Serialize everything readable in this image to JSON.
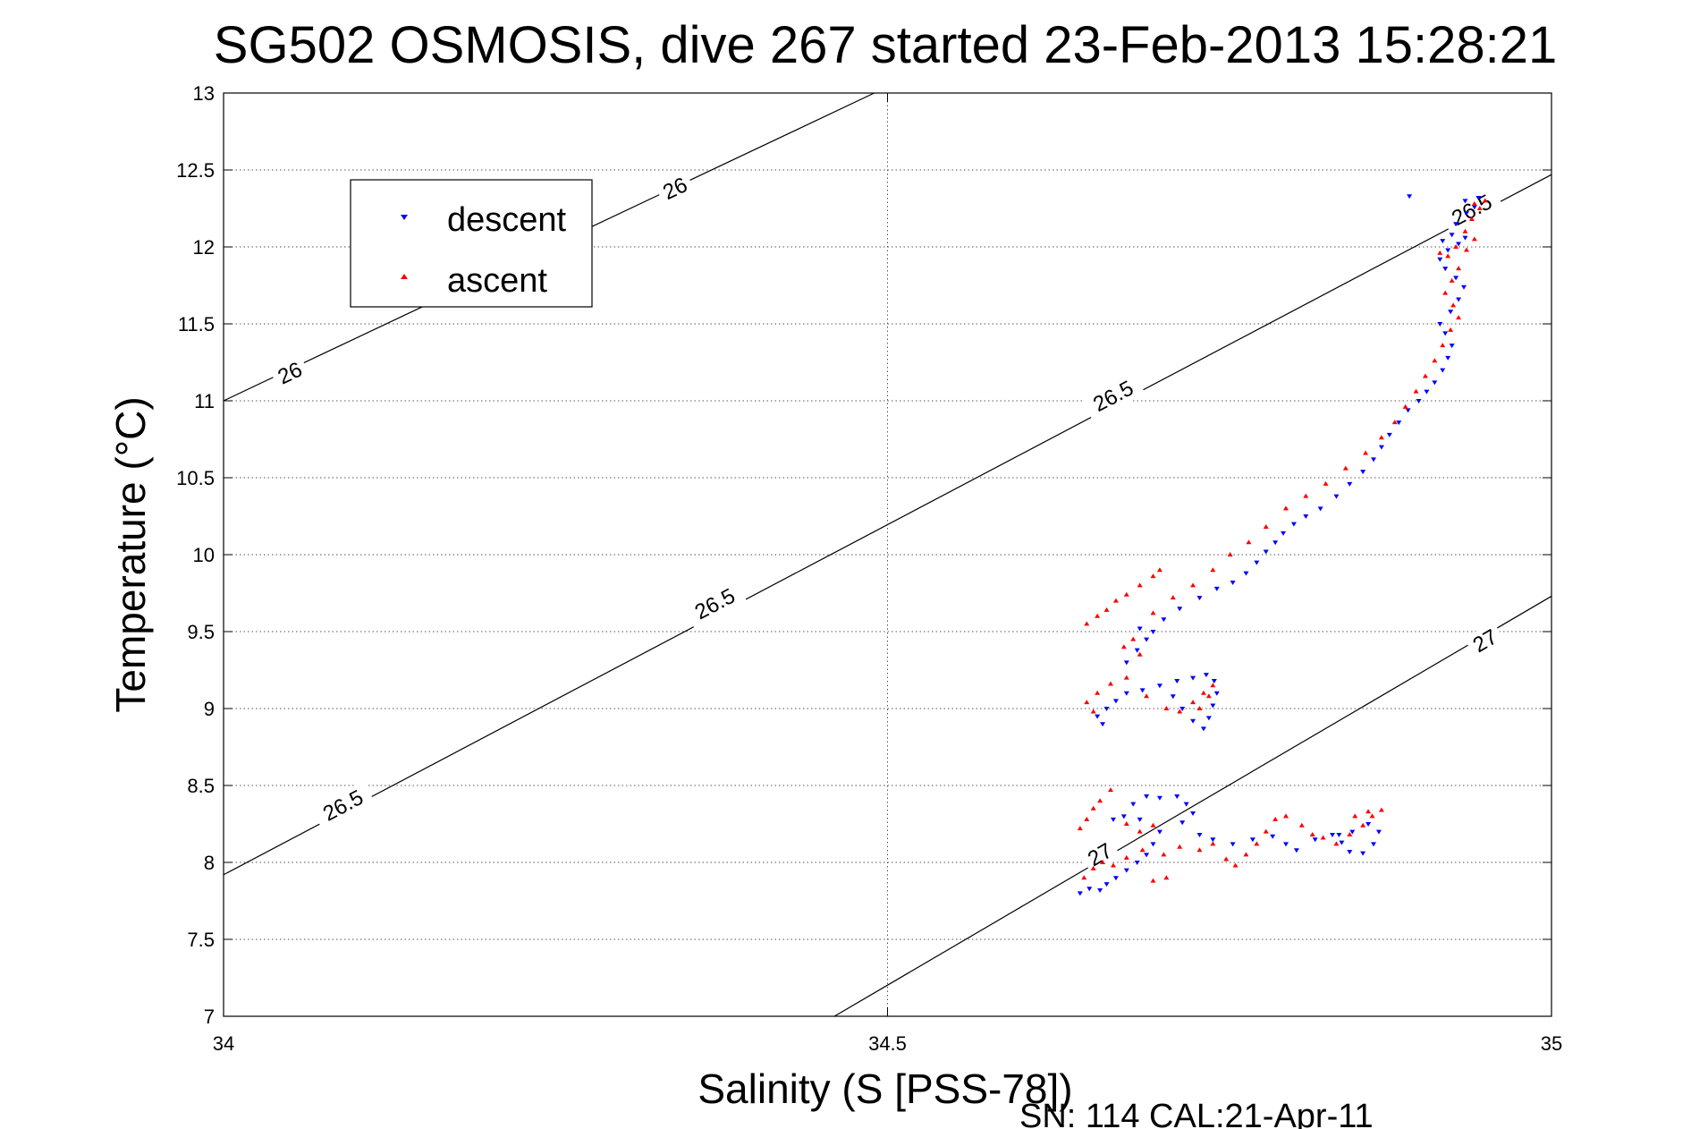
{
  "chart_data": {
    "type": "scatter",
    "title": "SG502 OSMOSIS, dive 267 started 23-Feb-2013 15:28:21",
    "xlabel": "Salinity (S [PSS-78])",
    "ylabel": "Temperature (°C)",
    "footer": "SN: 114  CAL:21-Apr-11",
    "xlim": [
      34,
      35
    ],
    "ylim": [
      7,
      13
    ],
    "x_ticks": [
      "34",
      "34.5",
      "35"
    ],
    "y_ticks": [
      "7",
      "7.5",
      "8",
      "8.5",
      "9",
      "9.5",
      "10",
      "10.5",
      "11",
      "11.5",
      "12",
      "12.5",
      "13"
    ],
    "grid": true,
    "legend": {
      "position": "top-left",
      "entries": [
        "descent",
        "ascent"
      ]
    },
    "colors": {
      "descent": "#0000ff",
      "ascent": "#ff0000",
      "contour": "#000000"
    },
    "contours": [
      {
        "label": "26",
        "points": [
          [
            34.0,
            11.0
          ],
          [
            34.49,
            13.0
          ]
        ],
        "label_positions": [
          [
            34.05,
            11.18
          ],
          [
            34.34,
            12.38
          ]
        ]
      },
      {
        "label": "26.5",
        "points": [
          [
            34.0,
            7.92
          ],
          [
            35.0,
            12.47
          ]
        ],
        "label_positions": [
          [
            34.09,
            8.37
          ],
          [
            34.37,
            9.68
          ],
          [
            34.67,
            11.03
          ],
          [
            34.94,
            12.24
          ]
        ]
      },
      {
        "label": "27",
        "points": [
          [
            34.46,
            7.0
          ],
          [
            35.0,
            9.73
          ]
        ],
        "label_positions": [
          [
            34.66,
            8.05
          ],
          [
            34.95,
            9.44
          ]
        ]
      }
    ],
    "series": [
      {
        "name": "descent",
        "marker": "triangle-down",
        "points": [
          [
            34.645,
            7.8
          ],
          [
            34.652,
            7.83
          ],
          [
            34.66,
            7.82
          ],
          [
            34.665,
            7.86
          ],
          [
            34.672,
            7.9
          ],
          [
            34.68,
            7.95
          ],
          [
            34.688,
            8.0
          ],
          [
            34.695,
            8.05
          ],
          [
            34.7,
            8.12
          ],
          [
            34.705,
            8.2
          ],
          [
            34.69,
            8.28
          ],
          [
            34.678,
            8.3
          ],
          [
            34.67,
            8.28
          ],
          [
            34.685,
            8.38
          ],
          [
            34.695,
            8.43
          ],
          [
            34.705,
            8.42
          ],
          [
            34.718,
            8.43
          ],
          [
            34.725,
            8.38
          ],
          [
            34.73,
            8.32
          ],
          [
            34.722,
            8.26
          ],
          [
            34.735,
            8.18
          ],
          [
            34.745,
            8.15
          ],
          [
            34.76,
            8.12
          ],
          [
            34.775,
            8.15
          ],
          [
            34.79,
            8.17
          ],
          [
            34.8,
            8.12
          ],
          [
            34.808,
            8.08
          ],
          [
            34.822,
            8.15
          ],
          [
            34.835,
            8.18
          ],
          [
            34.842,
            8.13
          ],
          [
            34.848,
            8.07
          ],
          [
            34.858,
            8.06
          ],
          [
            34.866,
            8.12
          ],
          [
            34.87,
            8.2
          ],
          [
            34.862,
            8.25
          ],
          [
            34.85,
            8.2
          ],
          [
            34.84,
            8.18
          ],
          [
            34.662,
            8.9
          ],
          [
            34.658,
            8.95
          ],
          [
            34.665,
            9.0
          ],
          [
            34.672,
            9.05
          ],
          [
            34.68,
            9.1
          ],
          [
            34.692,
            9.12
          ],
          [
            34.705,
            9.15
          ],
          [
            34.718,
            9.18
          ],
          [
            34.73,
            9.2
          ],
          [
            34.74,
            9.22
          ],
          [
            34.746,
            9.18
          ],
          [
            34.748,
            9.1
          ],
          [
            34.745,
            9.02
          ],
          [
            34.742,
            8.94
          ],
          [
            34.738,
            8.87
          ],
          [
            34.73,
            8.92
          ],
          [
            34.722,
            9.0
          ],
          [
            34.715,
            9.08
          ],
          [
            34.68,
            9.3
          ],
          [
            34.688,
            9.38
          ],
          [
            34.695,
            9.45
          ],
          [
            34.69,
            9.52
          ],
          [
            34.7,
            9.5
          ],
          [
            34.708,
            9.58
          ],
          [
            34.72,
            9.65
          ],
          [
            34.735,
            9.72
          ],
          [
            34.748,
            9.78
          ],
          [
            34.76,
            9.82
          ],
          [
            34.77,
            9.88
          ],
          [
            34.778,
            9.95
          ],
          [
            34.785,
            10.02
          ],
          [
            34.792,
            10.08
          ],
          [
            34.798,
            10.14
          ],
          [
            34.806,
            10.2
          ],
          [
            34.815,
            10.25
          ],
          [
            34.826,
            10.3
          ],
          [
            34.838,
            10.38
          ],
          [
            34.848,
            10.46
          ],
          [
            34.858,
            10.54
          ],
          [
            34.866,
            10.62
          ],
          [
            34.872,
            10.7
          ],
          [
            34.878,
            10.78
          ],
          [
            34.885,
            10.86
          ],
          [
            34.892,
            10.94
          ],
          [
            34.9,
            11.0
          ],
          [
            34.906,
            11.06
          ],
          [
            34.912,
            11.12
          ],
          [
            34.918,
            11.2
          ],
          [
            34.922,
            11.28
          ],
          [
            34.925,
            11.36
          ],
          [
            34.92,
            11.44
          ],
          [
            34.916,
            11.5
          ],
          [
            34.924,
            11.58
          ],
          [
            34.93,
            11.66
          ],
          [
            34.934,
            11.74
          ],
          [
            34.928,
            11.8
          ],
          [
            34.92,
            11.86
          ],
          [
            34.916,
            11.92
          ],
          [
            34.922,
            11.98
          ],
          [
            34.93,
            12.02
          ],
          [
            34.935,
            12.06
          ],
          [
            34.925,
            12.08
          ],
          [
            34.918,
            12.04
          ],
          [
            34.928,
            12.15
          ],
          [
            34.936,
            12.22
          ],
          [
            34.942,
            12.26
          ],
          [
            34.935,
            12.3
          ],
          [
            34.945,
            12.32
          ],
          [
            34.893,
            12.33
          ]
        ]
      },
      {
        "name": "ascent",
        "marker": "triangle-up",
        "points": [
          [
            34.648,
            7.9
          ],
          [
            34.655,
            7.96
          ],
          [
            34.662,
            8.0
          ],
          [
            34.67,
            7.98
          ],
          [
            34.68,
            8.03
          ],
          [
            34.692,
            8.08
          ],
          [
            34.708,
            8.05
          ],
          [
            34.72,
            8.1
          ],
          [
            34.735,
            8.08
          ],
          [
            34.745,
            8.12
          ],
          [
            34.755,
            8.02
          ],
          [
            34.762,
            7.98
          ],
          [
            34.77,
            8.05
          ],
          [
            34.778,
            8.12
          ],
          [
            34.785,
            8.2
          ],
          [
            34.792,
            8.28
          ],
          [
            34.8,
            8.3
          ],
          [
            34.812,
            8.24
          ],
          [
            34.82,
            8.18
          ],
          [
            34.828,
            8.16
          ],
          [
            34.838,
            8.12
          ],
          [
            34.848,
            8.18
          ],
          [
            34.858,
            8.24
          ],
          [
            34.865,
            8.3
          ],
          [
            34.872,
            8.34
          ],
          [
            34.862,
            8.33
          ],
          [
            34.852,
            8.3
          ],
          [
            34.71,
            7.9
          ],
          [
            34.7,
            7.88
          ],
          [
            34.645,
            8.22
          ],
          [
            34.65,
            8.28
          ],
          [
            34.655,
            8.35
          ],
          [
            34.66,
            8.4
          ],
          [
            34.668,
            8.47
          ],
          [
            34.68,
            8.25
          ],
          [
            34.69,
            8.2
          ],
          [
            34.7,
            8.24
          ],
          [
            34.655,
            8.98
          ],
          [
            34.65,
            9.04
          ],
          [
            34.658,
            9.1
          ],
          [
            34.668,
            9.16
          ],
          [
            34.68,
            9.2
          ],
          [
            34.695,
            9.08
          ],
          [
            34.71,
            9.0
          ],
          [
            34.72,
            8.98
          ],
          [
            34.73,
            9.04
          ],
          [
            34.738,
            9.1
          ],
          [
            34.745,
            9.15
          ],
          [
            34.742,
            9.08
          ],
          [
            34.735,
            9.0
          ],
          [
            34.65,
            9.55
          ],
          [
            34.658,
            9.6
          ],
          [
            34.665,
            9.64
          ],
          [
            34.672,
            9.7
          ],
          [
            34.68,
            9.74
          ],
          [
            34.69,
            9.8
          ],
          [
            34.7,
            9.86
          ],
          [
            34.705,
            9.9
          ],
          [
            34.685,
            9.45
          ],
          [
            34.678,
            9.4
          ],
          [
            34.69,
            9.35
          ],
          [
            34.7,
            9.62
          ],
          [
            34.715,
            9.72
          ],
          [
            34.73,
            9.8
          ],
          [
            34.745,
            9.9
          ],
          [
            34.758,
            10.0
          ],
          [
            34.772,
            10.08
          ],
          [
            34.785,
            10.18
          ],
          [
            34.8,
            10.3
          ],
          [
            34.815,
            10.38
          ],
          [
            34.83,
            10.46
          ],
          [
            34.845,
            10.56
          ],
          [
            34.86,
            10.66
          ],
          [
            34.872,
            10.76
          ],
          [
            34.882,
            10.86
          ],
          [
            34.89,
            10.96
          ],
          [
            34.898,
            11.06
          ],
          [
            34.905,
            11.16
          ],
          [
            34.912,
            11.26
          ],
          [
            34.918,
            11.36
          ],
          [
            34.924,
            11.46
          ],
          [
            34.93,
            11.54
          ],
          [
            34.926,
            11.62
          ],
          [
            34.92,
            11.7
          ],
          [
            34.925,
            11.78
          ],
          [
            34.93,
            11.86
          ],
          [
            34.922,
            11.94
          ],
          [
            34.916,
            11.96
          ],
          [
            34.928,
            12.0
          ],
          [
            34.936,
            11.98
          ],
          [
            34.942,
            12.05
          ],
          [
            34.935,
            12.1
          ],
          [
            34.94,
            12.18
          ],
          [
            34.946,
            12.25
          ],
          [
            34.95,
            12.3
          ],
          [
            34.942,
            12.28
          ]
        ]
      }
    ]
  }
}
